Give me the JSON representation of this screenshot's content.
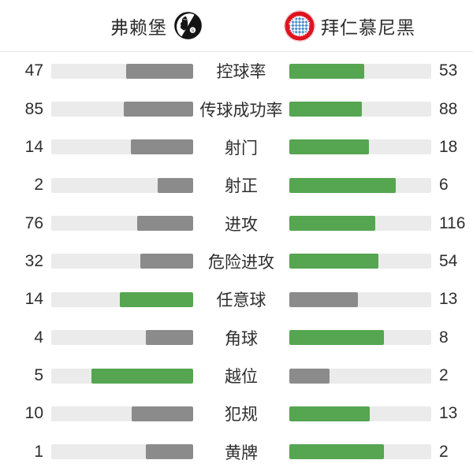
{
  "header": {
    "home": {
      "name": "弗赖堡",
      "crest": "freiburg-crest"
    },
    "away": {
      "name": "拜仁慕尼黑",
      "crest": "bayern-crest"
    }
  },
  "colors": {
    "leading_bar": "#55a551",
    "trailing_bar": "#8b8b8b",
    "bar_track": "#ebebeb",
    "text": "#2e2e2e",
    "bayern_red": "#dd1420",
    "bayern_blue": "#4b8fcd",
    "freiburg_black": "#141414"
  },
  "stats": [
    {
      "label": "控球率",
      "home": 47,
      "away": 53,
      "leader": "away"
    },
    {
      "label": "传球成功率",
      "home": 85,
      "away": 88,
      "leader": "away"
    },
    {
      "label": "射门",
      "home": 14,
      "away": 18,
      "leader": "away"
    },
    {
      "label": "射正",
      "home": 2,
      "away": 6,
      "leader": "away"
    },
    {
      "label": "进攻",
      "home": 76,
      "away": 116,
      "leader": "away"
    },
    {
      "label": "危险进攻",
      "home": 32,
      "away": 54,
      "leader": "away"
    },
    {
      "label": "任意球",
      "home": 14,
      "away": 13,
      "leader": "home"
    },
    {
      "label": "角球",
      "home": 4,
      "away": 8,
      "leader": "away"
    },
    {
      "label": "越位",
      "home": 5,
      "away": 2,
      "leader": "home"
    },
    {
      "label": "犯规",
      "home": 10,
      "away": 13,
      "leader": "away"
    },
    {
      "label": "黄牌",
      "home": 1,
      "away": 2,
      "leader": "away"
    }
  ],
  "chart_data": {
    "type": "bar",
    "title": "",
    "categories": [
      "控球率",
      "传球成功率",
      "射门",
      "射正",
      "进攻",
      "危险进攻",
      "任意球",
      "角球",
      "越位",
      "犯规",
      "黄牌"
    ],
    "series": [
      {
        "name": "弗赖堡",
        "values": [
          47,
          85,
          14,
          2,
          76,
          32,
          14,
          4,
          5,
          10,
          1
        ]
      },
      {
        "name": "拜仁慕尼黑",
        "values": [
          53,
          88,
          18,
          6,
          116,
          54,
          13,
          8,
          2,
          13,
          2
        ]
      }
    ],
    "layout": "horizontal mirrored bars from center labels; each side's fill length = value / (home+away); leading side colored green, trailing side gray",
    "legend_position": "top header with team crests",
    "grid": false
  }
}
